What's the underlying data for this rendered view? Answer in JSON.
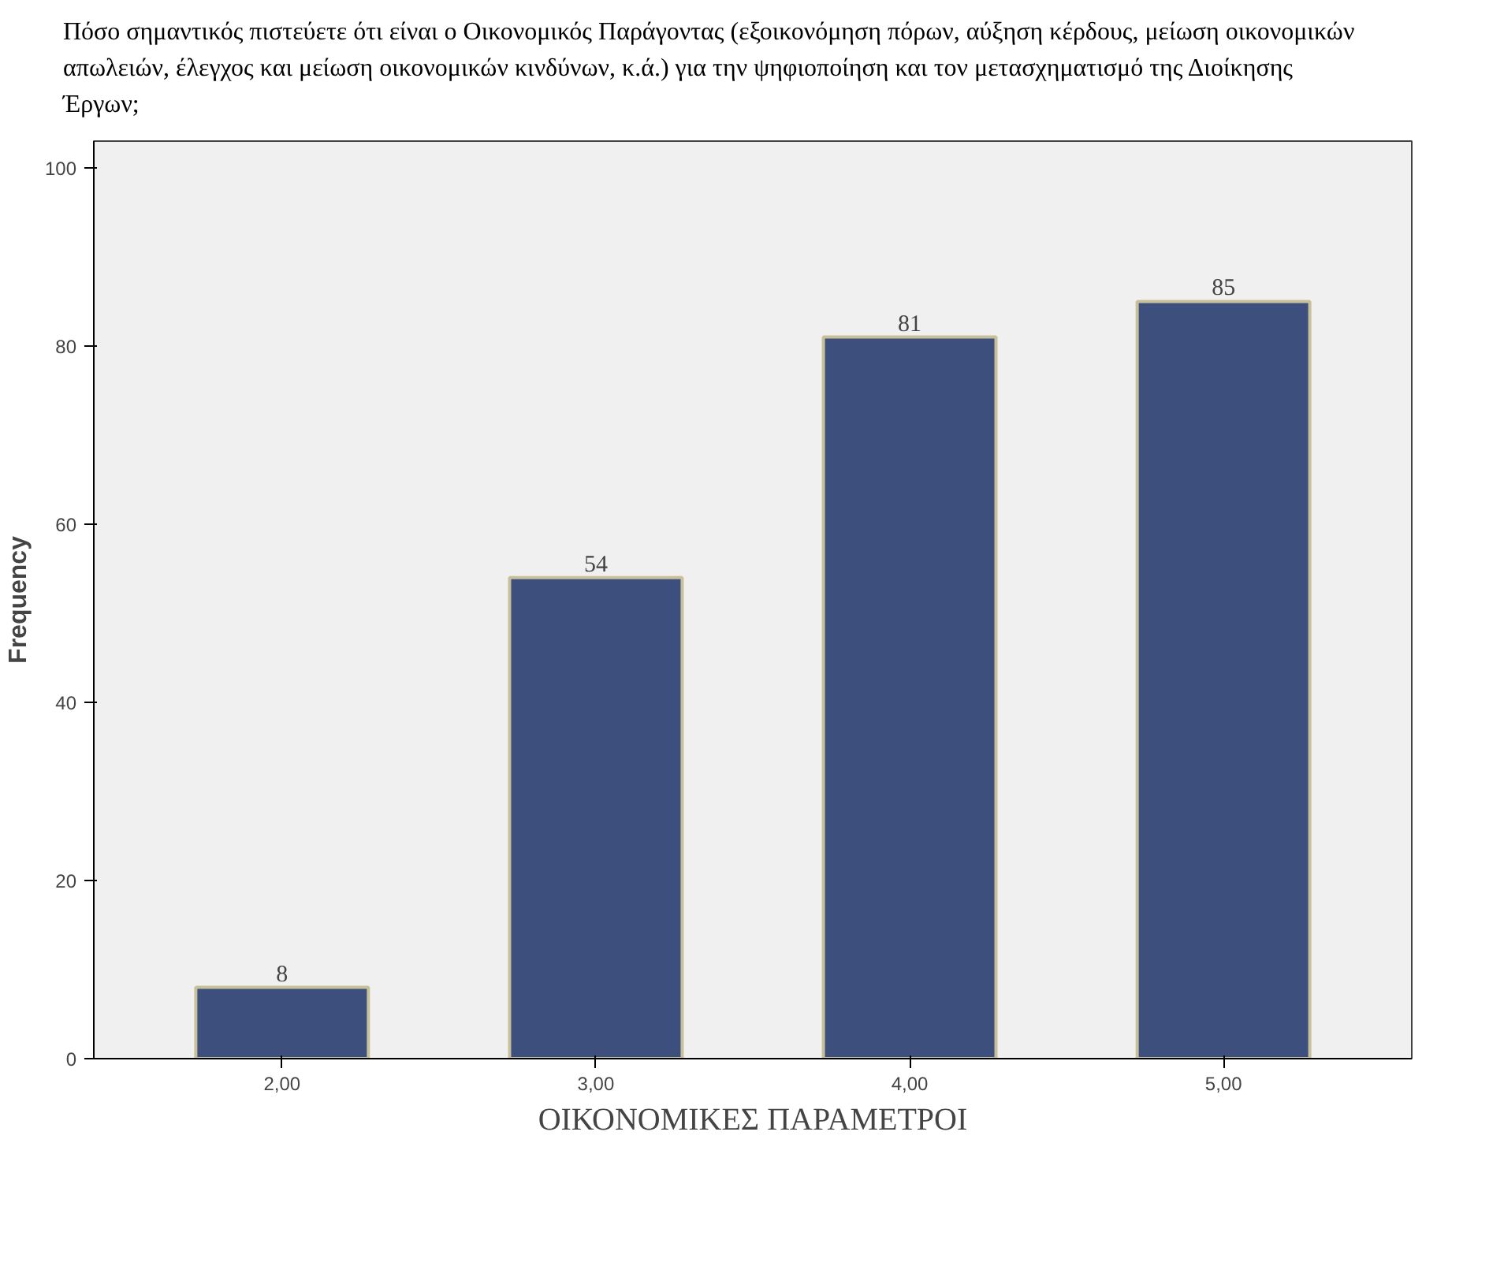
{
  "chart_data": {
    "type": "bar",
    "title": "Πόσο σημαντικός πιστεύετε ότι είναι ο Οικονομικός Παράγοντας (εξοικονόμηση πόρων, αύξηση κέρδους, μείωση οικονομικών απωλειών, έλεγχος και μείωση οικονομικών κινδύνων, κ.ά.) για την ψηφιοποίηση και τον μετασχηματισμό της Διοίκησης Έργων;",
    "categories": [
      "2,00",
      "3,00",
      "4,00",
      "5,00"
    ],
    "values": [
      8,
      54,
      81,
      85
    ],
    "color": "#3d4f7c",
    "xlabel": "ΟΙΚΟΝΟΜΙΚΕΣ ΠΑΡΑΜΕΤΡΟΙ",
    "ylabel": "Frequency",
    "ylim": [
      0,
      103
    ],
    "yticks": [
      0,
      20,
      40,
      60,
      80,
      100
    ],
    "data_labels": true,
    "grid": false
  }
}
